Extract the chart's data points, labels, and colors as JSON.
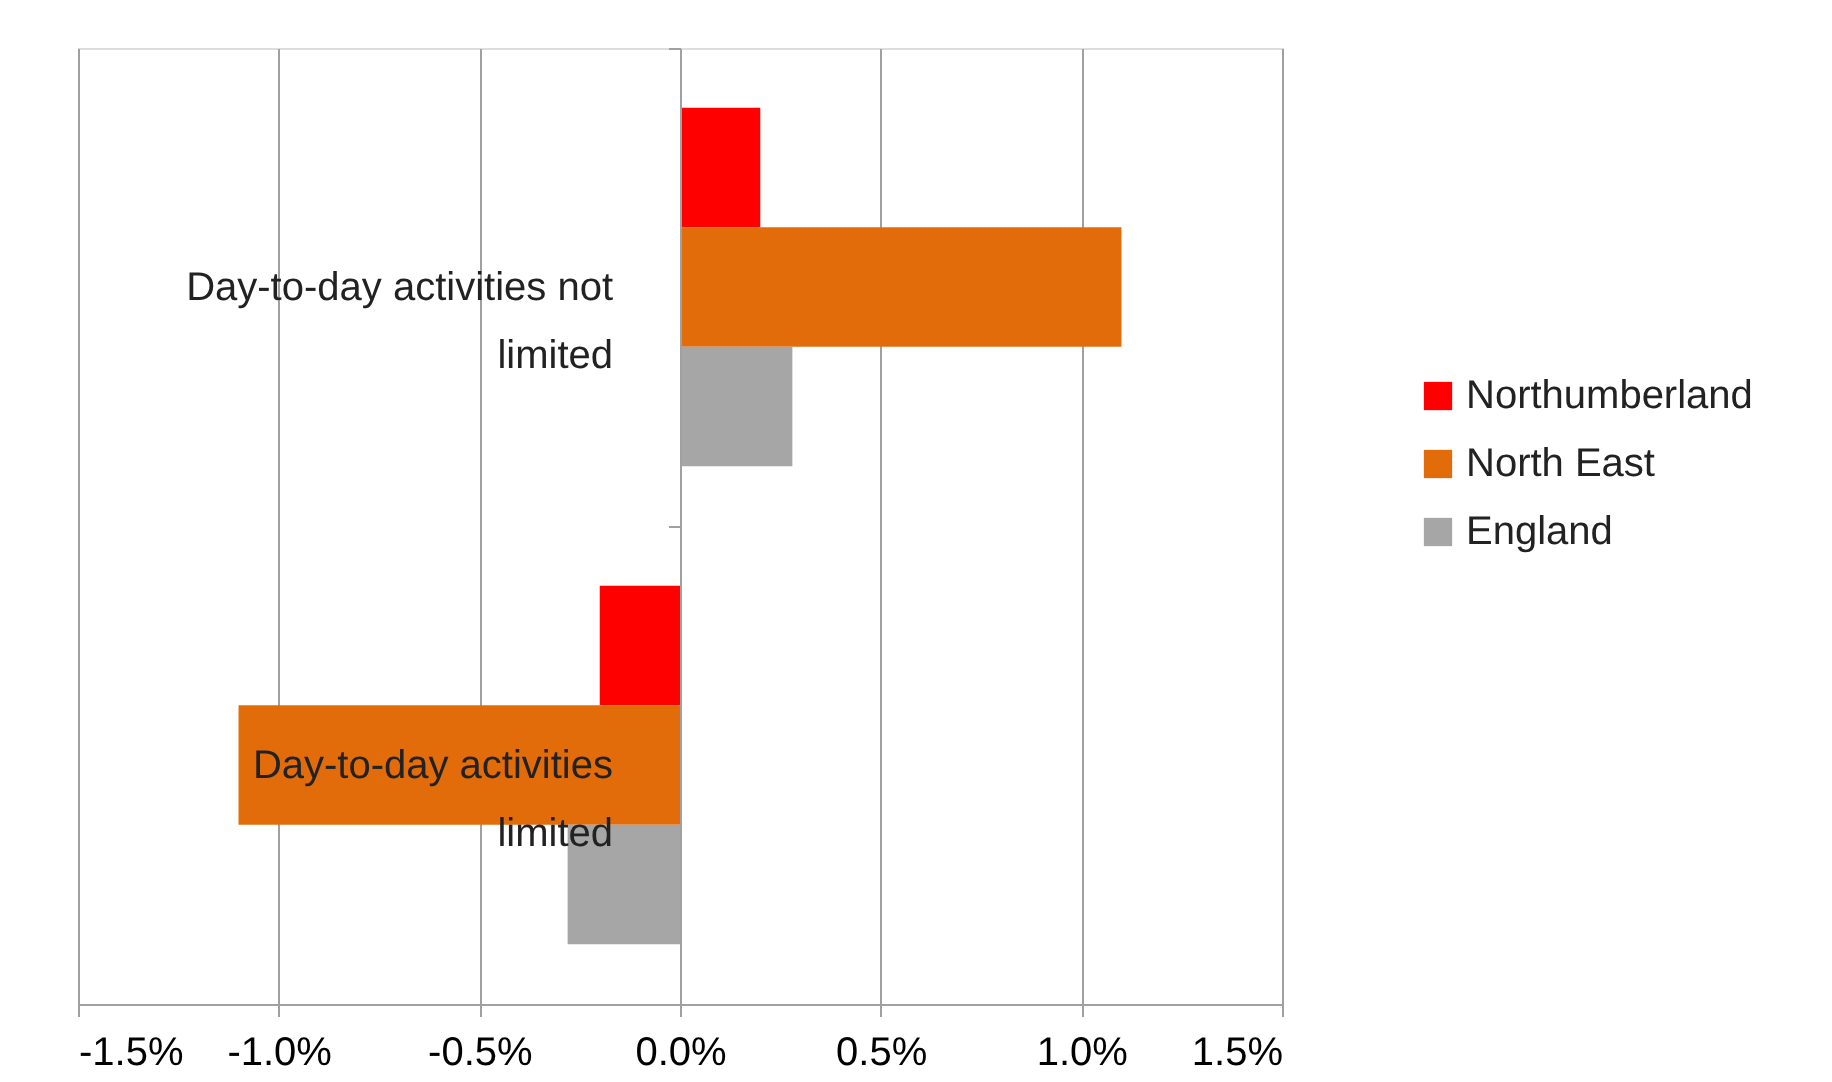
{
  "chart_data": {
    "type": "bar",
    "orientation": "horizontal",
    "categories": [
      "Day-to-day activities not limited",
      "Day-to-day activities limited"
    ],
    "series": [
      {
        "name": "Northumberland",
        "color": "#ff0000",
        "values": [
          0.2,
          -0.2
        ]
      },
      {
        "name": "North East",
        "color": "#e36c0a",
        "values": [
          1.1,
          -1.1
        ]
      },
      {
        "name": "England",
        "color": "#a6a6a6",
        "values": [
          0.28,
          -0.28
        ]
      }
    ],
    "xlim": [
      -1.5,
      1.5
    ],
    "xticks": [
      {
        "value": -1.5,
        "label": "-1.5%"
      },
      {
        "value": -1.0,
        "label": "-1.0%"
      },
      {
        "value": -0.5,
        "label": "-0.5%"
      },
      {
        "value": 0,
        "label": "0.0%"
      },
      {
        "value": 0.5,
        "label": "0.5%"
      },
      {
        "value": 1.0,
        "label": "1.0%"
      },
      {
        "value": 1.5,
        "label": "1.5%"
      }
    ],
    "grid": "x",
    "legend": "right"
  }
}
